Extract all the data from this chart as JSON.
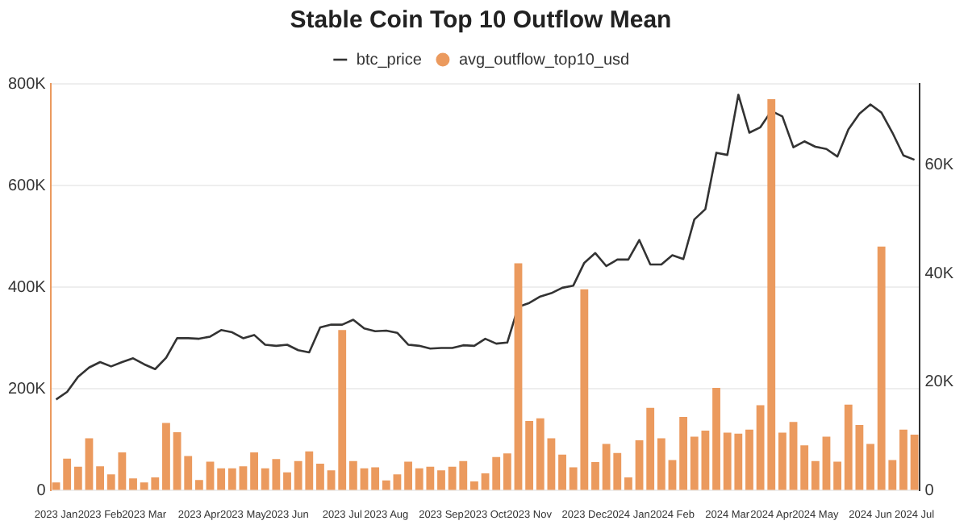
{
  "chart_data": {
    "type": "bar",
    "title": "Stable Coin Top 10 Outflow Mean",
    "categories": [
      "2023 Jan",
      null,
      null,
      null,
      "2023 Feb",
      null,
      null,
      null,
      "2023 Mar",
      null,
      null,
      null,
      null,
      "2023 Apr",
      null,
      null,
      null,
      "2023 May",
      null,
      null,
      null,
      "2023 Jun",
      null,
      null,
      null,
      null,
      "2023 Jul",
      null,
      null,
      null,
      "2023 Aug",
      null,
      null,
      null,
      null,
      "2023 Sep",
      null,
      null,
      null,
      "2023 Oct",
      null,
      null,
      null,
      "2023 Nov",
      null,
      null,
      null,
      null,
      "2023 Dec",
      null,
      null,
      null,
      "2024 Jan",
      null,
      null,
      null,
      "2024 Feb",
      null,
      null,
      null,
      null,
      "2024 Mar",
      null,
      null,
      null,
      "2024 Apr",
      null,
      null,
      null,
      "2024 May",
      null,
      null,
      null,
      null,
      "2024 Jun",
      null,
      null,
      null,
      "2024 Jul"
    ],
    "series": [
      {
        "name": "btc_price",
        "type": "line",
        "axis": "y2",
        "color": "#333333",
        "values": [
          16.8,
          18.2,
          21.0,
          22.7,
          23.7,
          22.9,
          23.7,
          24.4,
          23.3,
          22.4,
          24.5,
          28.1,
          28.1,
          28.0,
          28.4,
          29.6,
          29.2,
          28.1,
          28.7,
          26.9,
          26.7,
          26.9,
          25.9,
          25.5,
          30.1,
          30.6,
          30.6,
          31.5,
          29.9,
          29.4,
          29.5,
          29.1,
          26.9,
          26.7,
          26.2,
          26.3,
          26.3,
          26.8,
          26.7,
          28.0,
          27.1,
          27.3,
          33.9,
          34.6,
          35.8,
          36.4,
          37.4,
          37.8,
          42.0,
          43.8,
          41.4,
          42.6,
          42.6,
          46.2,
          41.7,
          41.7,
          43.4,
          42.7,
          50.0,
          51.9,
          62.3,
          61.9,
          73.0,
          66.0,
          67.0,
          70.0,
          69.0,
          63.3,
          64.4,
          63.4,
          63.0,
          61.6,
          66.6,
          69.5,
          71.2,
          69.7,
          66.0,
          61.8,
          61.0
        ]
      },
      {
        "name": "avg_outflow_top10_usd",
        "color": "#eb9a5e",
        "values": [
          16,
          63,
          47,
          103,
          48,
          32,
          75,
          24,
          16,
          26,
          133,
          115,
          68,
          21,
          57,
          44,
          44,
          48,
          75,
          44,
          62,
          36,
          58,
          77,
          53,
          40,
          316,
          58,
          44,
          46,
          20,
          32,
          57,
          44,
          47,
          40,
          47,
          58,
          18,
          34,
          66,
          73,
          447,
          137,
          142,
          103,
          71,
          46,
          396,
          56,
          92,
          74,
          26,
          99,
          163,
          103,
          60,
          145,
          106,
          118,
          202,
          114,
          112,
          120,
          168,
          770,
          114,
          135,
          89,
          58,
          106,
          57,
          169,
          129,
          92,
          480,
          60,
          120,
          110
        ]
      }
    ],
    "ylim": [
      0,
      800
    ],
    "yticks": [
      {
        "value": 0,
        "label": "0"
      },
      {
        "value": 200,
        "label": "200K"
      },
      {
        "value": 400,
        "label": "400K"
      },
      {
        "value": 600,
        "label": "600K"
      },
      {
        "value": 800,
        "label": "800K"
      }
    ],
    "y2lim": [
      0,
      75
    ],
    "y2ticks": [
      {
        "value": 0,
        "label": "0"
      },
      {
        "value": 20,
        "label": "20K"
      },
      {
        "value": 40,
        "label": "40K"
      },
      {
        "value": 60,
        "label": "60K"
      }
    ],
    "grid": "y",
    "legend": "top",
    "marker": "none",
    "line_style": "solid"
  }
}
